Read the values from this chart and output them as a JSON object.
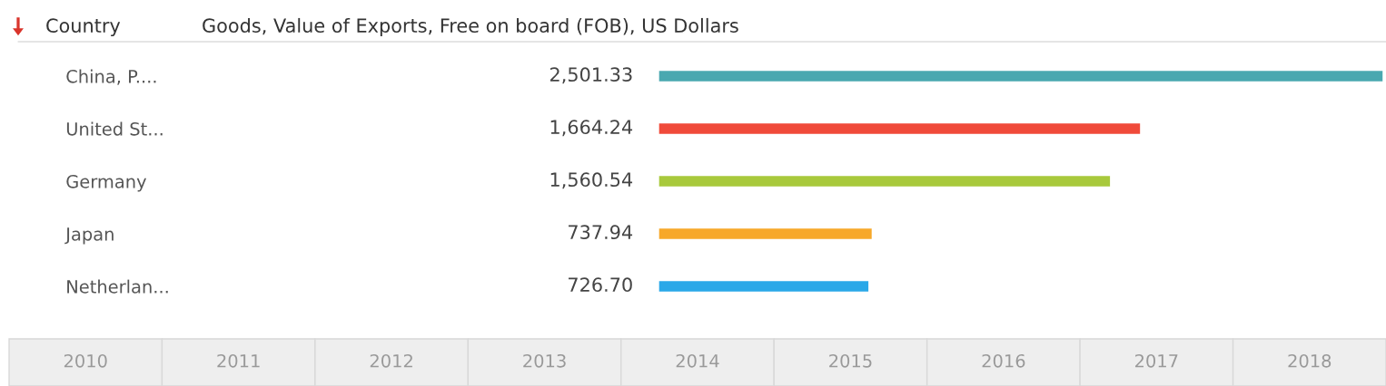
{
  "chart_data": {
    "type": "bar",
    "orientation": "horizontal",
    "title": "Goods, Value of Exports, Free on board (FOB), US Dollars",
    "ylabel": "Country",
    "categories": [
      "China, P....",
      "United St...",
      "Germany",
      "Japan",
      "Netherlan..."
    ],
    "values": [
      2501.33,
      1664.24,
      1560.54,
      737.94,
      726.7
    ],
    "value_labels": [
      "2,501.33",
      "1,664.24",
      "1,560.54",
      "737.94",
      "726.70"
    ],
    "colors": [
      "#4aa8b0",
      "#f04a3a",
      "#a8c93c",
      "#f7a829",
      "#2aa8e8"
    ],
    "xlim": [
      0,
      2501.33
    ],
    "tick_labels": "y",
    "grid": false,
    "legend": false,
    "annotations": [
      "2010",
      "2011",
      "2012",
      "2013",
      "2014",
      "2015",
      "2016",
      "2017",
      "2018"
    ]
  }
}
